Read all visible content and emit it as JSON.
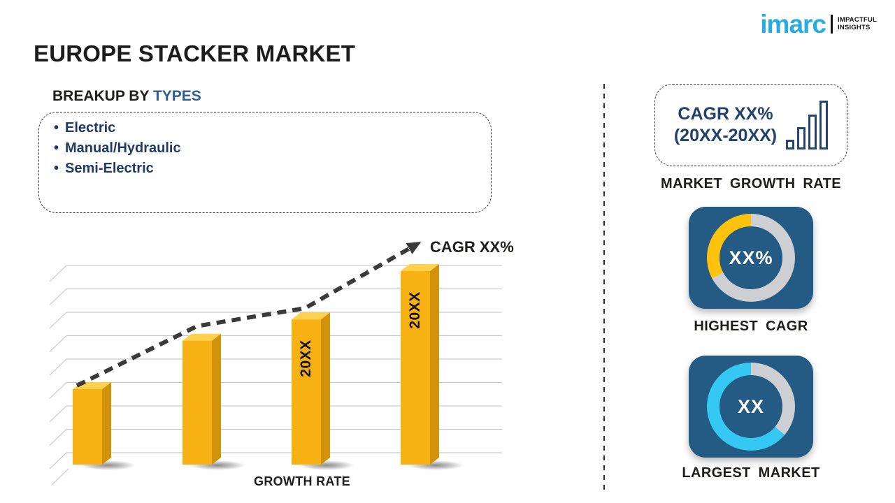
{
  "brand": {
    "logo_text": "imarc",
    "tagline_line1": "IMPACTFUL",
    "tagline_line2": "INSIGHTS",
    "logo_color": "#29ABE2"
  },
  "page_title": "EUROPE STACKER MARKET",
  "breakup": {
    "heading_prefix": "BREAKUP BY ",
    "heading_highlight": "TYPES",
    "bullet": "•",
    "items": [
      "Electric",
      "Manual/Hydraulic",
      "Semi-Electric"
    ]
  },
  "chart_data": {
    "type": "bar",
    "title": "",
    "xlabel": "GROWTH RATE",
    "ylabel": "",
    "bars": [
      {
        "label": "",
        "value": 39
      },
      {
        "label": "",
        "value": 64
      },
      {
        "label": "20XX",
        "value": 75
      },
      {
        "label": "20XX",
        "value": 100
      }
    ],
    "unit": "relative height, % of tallest bar (placeholder chart, no numeric axis shown)",
    "trend": {
      "label": "CAGR XX%",
      "style": "dashed-arrow",
      "color": "#3A3A3A"
    },
    "gridlines": {
      "count": 9,
      "color": "#C9C9C9",
      "style": "3d-perspective-ticks"
    },
    "bar_colors": {
      "front": "#F8B113",
      "side": "#D3920B",
      "top": "#FFD14D"
    },
    "label_color": "#111111"
  },
  "right_panel": {
    "growth_box": {
      "line1": "CAGR XX%",
      "line2": "(20XX-20XX)",
      "icon": "growth-bars-icon",
      "icon_color": "#26466F",
      "text_color": "#21406E"
    },
    "market_growth_rate_label": "MARKET GROWTH RATE",
    "highest_cagr": {
      "value": "XX%",
      "label": "HIGHEST CAGR",
      "ring": {
        "track_color": "#CDCFD2",
        "fill_color": "#FFC20E",
        "fill_from_deg": 242,
        "fill_to_deg": 360,
        "fill_percent": 33
      }
    },
    "largest_market": {
      "value": "XX",
      "label": "LARGEST MARKET",
      "ring": {
        "track_color": "#CDCFD2",
        "fill_color": "#35C8F2",
        "fill_from_deg": 130,
        "fill_to_deg": 360,
        "fill_percent": 64
      }
    },
    "tile_bg": "#235B84"
  },
  "colors": {
    "text_dark": "#1D1D1B",
    "navy_text": "#203A64",
    "heading_highlight_blue": "#2E5C97",
    "brand_blue": "#29ABE2"
  }
}
